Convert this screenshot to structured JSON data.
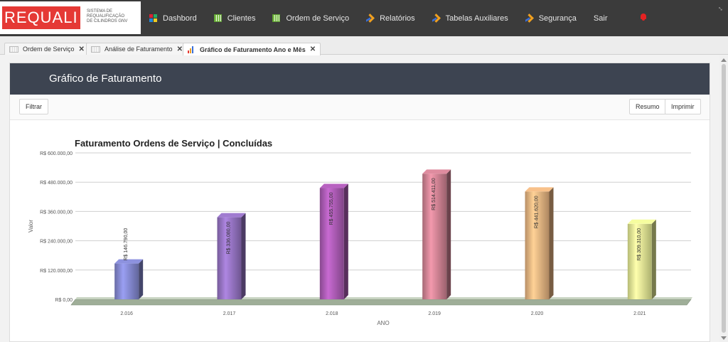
{
  "brand": {
    "name": "REQUALI",
    "subtitle": "SISTEMA DE\nREQUALIFICAÇÃO\nDE CILINDROS GNV"
  },
  "nav": [
    {
      "label": "Dashbord",
      "icon": "dashboard-grid-icon"
    },
    {
      "label": "Clientes",
      "icon": "table-icon"
    },
    {
      "label": "Ordem de Serviço",
      "icon": "table-icon"
    },
    {
      "label": "Relatórios",
      "icon": "arrow-icon"
    },
    {
      "label": "Tabelas Auxiliares",
      "icon": "arrow-icon"
    },
    {
      "label": "Segurança",
      "icon": "arrow-icon"
    },
    {
      "label": "Sair",
      "icon": ""
    }
  ],
  "tabs": [
    {
      "label": "Ordem de Serviço",
      "active": false
    },
    {
      "label": "Análise de Faturamento",
      "active": false
    },
    {
      "label": "Gráfico de Faturamento Ano e Mês",
      "active": true
    }
  ],
  "panel": {
    "title": "Gráfico de Faturamento",
    "filter_label": "Filtrar",
    "summary_label": "Resumo",
    "print_label": "Imprimir"
  },
  "colors": {
    "topbar": "#3b3b3b",
    "panel_header": "#3d4451",
    "brand_red": "#e53935",
    "bar_colors": [
      "#7b7fc2",
      "#8b6bb5",
      "#a055a8",
      "#c27a8a",
      "#d8a878",
      "#d6dc8a"
    ]
  },
  "chart_data": {
    "type": "bar",
    "title": "Faturamento Ordens de Serviço | Concluídas",
    "xlabel": "ANO",
    "ylabel": "Valor",
    "categories": [
      "2.016",
      "2.017",
      "2.018",
      "2.019",
      "2.020",
      "2.021"
    ],
    "values": [
      146790,
      336080,
      455755,
      514411,
      441620,
      309310
    ],
    "value_labels": [
      "R$ 146.790,00",
      "R$ 336.080,00",
      "R$ 455.755,00",
      "R$ 514.411,00",
      "R$ 441.620,00",
      "R$ 309.310,00"
    ],
    "yticks": [
      "R$ 0,00",
      "R$ 120.000,00",
      "R$ 240.000,00",
      "R$ 360.000,00",
      "R$ 480.000,00",
      "R$ 600.000,00"
    ],
    "ylim": [
      0,
      600000
    ],
    "grid": true,
    "style": "3d-cylinder-bars"
  }
}
